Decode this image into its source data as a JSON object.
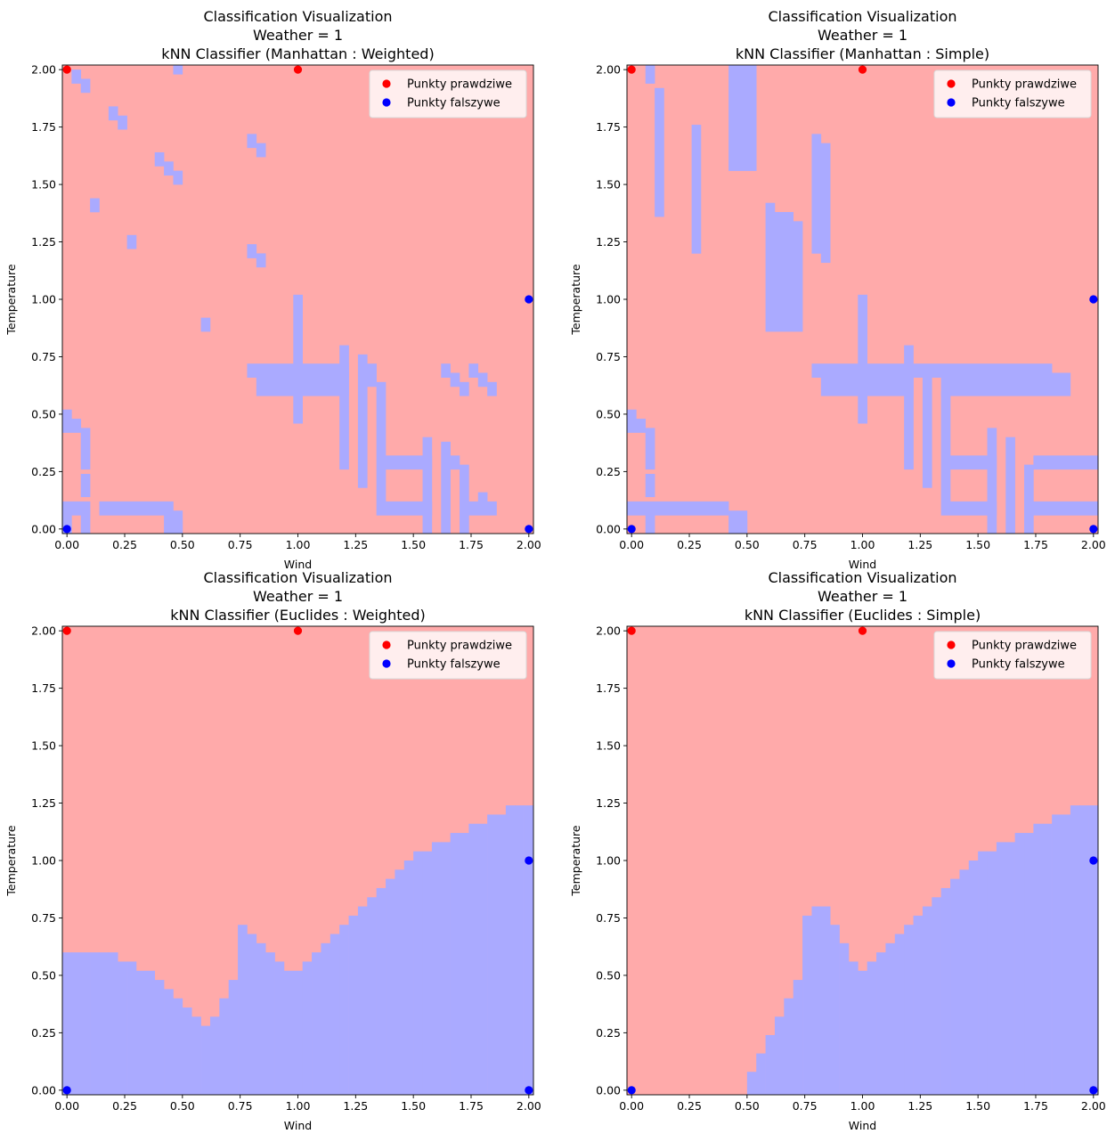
{
  "figure": {
    "background": "#ffffff"
  },
  "colors": {
    "region_true": "#ffaaaa",
    "region_false": "#aaaaff",
    "point_true": "#ff0000",
    "point_false": "#0000ff"
  },
  "chart_data": [
    {
      "type": "heatmap",
      "title": [
        "Classification Visualization",
        "Weather = 1",
        "kNN Classifier (Manhattan : Weighted)"
      ],
      "xlabel": "Wind",
      "ylabel": "Temperature",
      "xlim": [
        -0.02,
        2.02
      ],
      "ylim": [
        -0.02,
        2.02
      ],
      "xticks": [
        "0.00",
        "0.25",
        "0.50",
        "0.75",
        "1.00",
        "1.25",
        "1.50",
        "1.75",
        "2.00"
      ],
      "yticks": [
        "0.00",
        "0.25",
        "0.50",
        "0.75",
        "1.00",
        "1.25",
        "1.50",
        "1.75",
        "2.00"
      ],
      "legend": {
        "position": "top-right",
        "entries": [
          "Punkty prawdziwe",
          "Punkty falszywe"
        ]
      },
      "grid": false,
      "grid_step": 0.04,
      "background_class": "Punkty prawdziwe",
      "region_false_rects": [
        [
          0.0,
          0.08,
          0.08,
          0.1
        ],
        [
          0.16,
          0.08,
          0.28,
          0.1
        ],
        [
          0.32,
          0.08,
          0.44,
          0.1
        ],
        [
          0.0,
          -0.02,
          0.0,
          0.06
        ],
        [
          0.08,
          -0.02,
          0.08,
          0.06
        ],
        [
          0.44,
          0.0,
          0.48,
          0.06
        ],
        [
          0.48,
          -0.02,
          0.48,
          0.02
        ],
        [
          0.08,
          0.16,
          0.08,
          0.22
        ],
        [
          0.08,
          0.28,
          0.08,
          0.42
        ],
        [
          0.0,
          0.44,
          0.04,
          0.46
        ],
        [
          0.0,
          0.48,
          0.0,
          0.5
        ],
        [
          0.8,
          0.68,
          1.2,
          0.7
        ],
        [
          0.84,
          0.6,
          1.2,
          0.66
        ],
        [
          1.0,
          0.72,
          1.0,
          1.0
        ],
        [
          1.0,
          0.48,
          1.0,
          0.58
        ],
        [
          1.2,
          0.28,
          1.2,
          0.78
        ],
        [
          1.28,
          0.2,
          1.28,
          0.74
        ],
        [
          1.32,
          0.64,
          1.32,
          0.7
        ],
        [
          1.36,
          0.08,
          1.36,
          0.62
        ],
        [
          1.4,
          0.08,
          1.56,
          0.1
        ],
        [
          1.4,
          0.28,
          1.56,
          0.3
        ],
        [
          1.56,
          -0.02,
          1.56,
          0.38
        ],
        [
          1.64,
          -0.02,
          1.64,
          0.36
        ],
        [
          1.68,
          0.28,
          1.68,
          0.3
        ],
        [
          1.72,
          -0.02,
          1.72,
          0.26
        ],
        [
          1.76,
          0.08,
          1.84,
          0.1
        ],
        [
          1.8,
          0.12,
          1.8,
          0.14
        ],
        [
          1.64,
          0.68,
          1.64,
          0.7
        ],
        [
          1.68,
          0.64,
          1.68,
          0.66
        ],
        [
          1.72,
          0.6,
          1.72,
          0.62
        ],
        [
          1.76,
          0.68,
          1.76,
          0.7
        ],
        [
          1.8,
          0.64,
          1.8,
          0.66
        ],
        [
          1.84,
          0.6,
          1.84,
          0.62
        ],
        [
          0.04,
          1.96,
          0.04,
          1.98
        ],
        [
          0.08,
          1.92,
          0.08,
          1.94
        ],
        [
          0.48,
          2.0,
          0.48,
          2.02
        ],
        [
          0.2,
          1.8,
          0.2,
          1.82
        ],
        [
          0.24,
          1.76,
          0.24,
          1.78
        ],
        [
          0.4,
          1.6,
          0.4,
          1.62
        ],
        [
          0.44,
          1.56,
          0.44,
          1.58
        ],
        [
          0.48,
          1.52,
          0.48,
          1.54
        ],
        [
          0.8,
          1.68,
          0.8,
          1.7
        ],
        [
          0.84,
          1.64,
          0.84,
          1.66
        ],
        [
          0.12,
          1.4,
          0.12,
          1.42
        ],
        [
          0.28,
          1.24,
          0.28,
          1.26
        ],
        [
          0.8,
          1.2,
          0.8,
          1.22
        ],
        [
          0.84,
          1.16,
          0.84,
          1.18
        ],
        [
          0.6,
          0.88,
          0.6,
          0.9
        ]
      ],
      "points_true": [
        [
          0,
          2
        ],
        [
          1,
          2
        ]
      ],
      "points_false": [
        [
          0,
          0
        ],
        [
          2,
          0
        ],
        [
          2,
          1
        ]
      ]
    },
    {
      "type": "heatmap",
      "title": [
        "Classification Visualization",
        "Weather = 1",
        "kNN Classifier (Manhattan : Simple)"
      ],
      "xlabel": "Wind",
      "ylabel": "Temperature",
      "xlim": [
        -0.02,
        2.02
      ],
      "ylim": [
        -0.02,
        2.02
      ],
      "xticks": [
        "0.00",
        "0.25",
        "0.50",
        "0.75",
        "1.00",
        "1.25",
        "1.50",
        "1.75",
        "2.00"
      ],
      "yticks": [
        "0.00",
        "0.25",
        "0.50",
        "0.75",
        "1.00",
        "1.25",
        "1.50",
        "1.75",
        "2.00"
      ],
      "legend": {
        "position": "top-right",
        "entries": [
          "Punkty prawdziwe",
          "Punkty falszywe"
        ]
      },
      "grid": false,
      "grid_step": 0.04,
      "background_class": "Punkty prawdziwe",
      "region_false_rects": [
        [
          0.0,
          0.08,
          0.4,
          0.1
        ],
        [
          0.08,
          -0.02,
          0.08,
          0.06
        ],
        [
          0.44,
          0.0,
          0.48,
          0.06
        ],
        [
          0.48,
          -0.02,
          0.48,
          0.02
        ],
        [
          0.08,
          0.16,
          0.08,
          0.22
        ],
        [
          0.08,
          0.28,
          0.08,
          0.42
        ],
        [
          0.0,
          0.44,
          0.04,
          0.46
        ],
        [
          0.0,
          0.48,
          0.0,
          0.5
        ],
        [
          0.84,
          0.6,
          1.2,
          0.66
        ],
        [
          0.8,
          0.68,
          1.8,
          0.7
        ],
        [
          1.0,
          0.72,
          1.0,
          1.0
        ],
        [
          1.0,
          0.48,
          1.0,
          0.58
        ],
        [
          1.2,
          0.28,
          1.2,
          0.78
        ],
        [
          1.28,
          0.2,
          1.28,
          0.66
        ],
        [
          1.36,
          0.6,
          1.88,
          0.66
        ],
        [
          1.36,
          0.08,
          1.36,
          0.58
        ],
        [
          1.4,
          0.08,
          1.56,
          0.1
        ],
        [
          1.4,
          0.28,
          1.56,
          0.3
        ],
        [
          1.56,
          -0.02,
          1.56,
          0.42
        ],
        [
          1.64,
          -0.02,
          1.64,
          0.38
        ],
        [
          1.72,
          -0.02,
          1.72,
          0.26
        ],
        [
          1.76,
          0.08,
          2.02,
          0.1
        ],
        [
          1.76,
          0.28,
          2.02,
          0.3
        ],
        [
          0.08,
          1.96,
          0.08,
          2.02
        ],
        [
          0.12,
          1.38,
          0.12,
          1.9
        ],
        [
          0.28,
          1.22,
          0.28,
          1.74
        ],
        [
          0.44,
          1.58,
          0.52,
          2.02
        ],
        [
          0.6,
          0.88,
          0.6,
          1.4
        ],
        [
          0.64,
          0.88,
          0.68,
          1.36
        ],
        [
          0.72,
          0.88,
          0.72,
          1.32
        ],
        [
          0.8,
          1.22,
          0.8,
          1.7
        ],
        [
          0.84,
          1.18,
          0.84,
          1.66
        ]
      ],
      "points_true": [
        [
          0,
          2
        ],
        [
          1,
          2
        ]
      ],
      "points_false": [
        [
          0,
          0
        ],
        [
          2,
          0
        ],
        [
          2,
          1
        ]
      ]
    },
    {
      "type": "heatmap",
      "title": [
        "Classification Visualization",
        "Weather = 1",
        "kNN Classifier (Euclides : Weighted)"
      ],
      "xlabel": "Wind",
      "ylabel": "Temperature",
      "xlim": [
        -0.02,
        2.02
      ],
      "ylim": [
        -0.02,
        2.02
      ],
      "xticks": [
        "0.00",
        "0.25",
        "0.50",
        "0.75",
        "1.00",
        "1.25",
        "1.50",
        "1.75",
        "2.00"
      ],
      "yticks": [
        "0.00",
        "0.25",
        "0.50",
        "0.75",
        "1.00",
        "1.25",
        "1.50",
        "1.75",
        "2.00"
      ],
      "legend": {
        "position": "top-right",
        "entries": [
          "Punkty prawdziwe",
          "Punkty falszywe"
        ]
      },
      "grid": false,
      "grid_step": 0.04,
      "background_class": "Punkty prawdziwe",
      "boundary_x": [
        0.0,
        0.04,
        0.08,
        0.12,
        0.16,
        0.2,
        0.24,
        0.28,
        0.32,
        0.36,
        0.4,
        0.44,
        0.48,
        0.52,
        0.56,
        0.6,
        0.64,
        0.68,
        0.72,
        0.76,
        0.8,
        0.84,
        0.88,
        0.92,
        0.96,
        1.0,
        1.04,
        1.08,
        1.12,
        1.16,
        1.2,
        1.24,
        1.28,
        1.32,
        1.36,
        1.4,
        1.44,
        1.48,
        1.52,
        1.56,
        1.6,
        1.64,
        1.68,
        1.72,
        1.76,
        1.8,
        1.84,
        1.88,
        1.92,
        1.96,
        2.0
      ],
      "boundary_y": [
        0.6,
        0.6,
        0.6,
        0.6,
        0.6,
        0.6,
        0.56,
        0.56,
        0.52,
        0.52,
        0.48,
        0.44,
        0.4,
        0.36,
        0.32,
        0.28,
        0.32,
        0.4,
        0.48,
        0.72,
        0.68,
        0.64,
        0.6,
        0.56,
        0.52,
        0.52,
        0.56,
        0.6,
        0.64,
        0.68,
        0.72,
        0.76,
        0.8,
        0.84,
        0.88,
        0.92,
        0.96,
        1.0,
        1.04,
        1.04,
        1.08,
        1.08,
        1.12,
        1.12,
        1.16,
        1.16,
        1.2,
        1.2,
        1.24,
        1.24,
        1.24
      ],
      "points_true": [
        [
          0,
          2
        ],
        [
          1,
          2
        ]
      ],
      "points_false": [
        [
          0,
          0
        ],
        [
          2,
          0
        ],
        [
          2,
          1
        ]
      ]
    },
    {
      "type": "heatmap",
      "title": [
        "Classification Visualization",
        "Weather = 1",
        "kNN Classifier (Euclides : Simple)"
      ],
      "xlabel": "Wind",
      "ylabel": "Temperature",
      "xlim": [
        -0.02,
        2.02
      ],
      "ylim": [
        -0.02,
        2.02
      ],
      "xticks": [
        "0.00",
        "0.25",
        "0.50",
        "0.75",
        "1.00",
        "1.25",
        "1.50",
        "1.75",
        "2.00"
      ],
      "yticks": [
        "0.00",
        "0.25",
        "0.50",
        "0.75",
        "1.00",
        "1.25",
        "1.50",
        "1.75",
        "2.00"
      ],
      "legend": {
        "position": "top-right",
        "entries": [
          "Punkty prawdziwe",
          "Punkty falszywe"
        ]
      },
      "grid": false,
      "grid_step": 0.04,
      "background_class": "Punkty prawdziwe",
      "boundary_x": [
        0.0,
        0.04,
        0.08,
        0.12,
        0.16,
        0.2,
        0.24,
        0.28,
        0.32,
        0.36,
        0.4,
        0.44,
        0.48,
        0.52,
        0.56,
        0.6,
        0.64,
        0.68,
        0.72,
        0.76,
        0.8,
        0.84,
        0.88,
        0.92,
        0.96,
        1.0,
        1.04,
        1.08,
        1.12,
        1.16,
        1.2,
        1.24,
        1.28,
        1.32,
        1.36,
        1.4,
        1.44,
        1.48,
        1.52,
        1.56,
        1.6,
        1.64,
        1.68,
        1.72,
        1.76,
        1.8,
        1.84,
        1.88,
        1.92,
        1.96,
        2.0
      ],
      "boundary_y": [
        -0.02,
        -0.02,
        -0.02,
        -0.02,
        -0.02,
        -0.02,
        -0.02,
        -0.02,
        -0.02,
        -0.02,
        -0.02,
        -0.02,
        -0.02,
        0.08,
        0.16,
        0.24,
        0.32,
        0.4,
        0.48,
        0.76,
        0.8,
        0.8,
        0.72,
        0.64,
        0.56,
        0.52,
        0.56,
        0.6,
        0.64,
        0.68,
        0.72,
        0.76,
        0.8,
        0.84,
        0.88,
        0.92,
        0.96,
        1.0,
        1.04,
        1.04,
        1.08,
        1.08,
        1.12,
        1.12,
        1.16,
        1.16,
        1.2,
        1.2,
        1.24,
        1.24,
        1.24
      ],
      "points_true": [
        [
          0,
          2
        ],
        [
          1,
          2
        ]
      ],
      "points_false": [
        [
          0,
          0
        ],
        [
          2,
          0
        ],
        [
          2,
          1
        ]
      ]
    }
  ]
}
